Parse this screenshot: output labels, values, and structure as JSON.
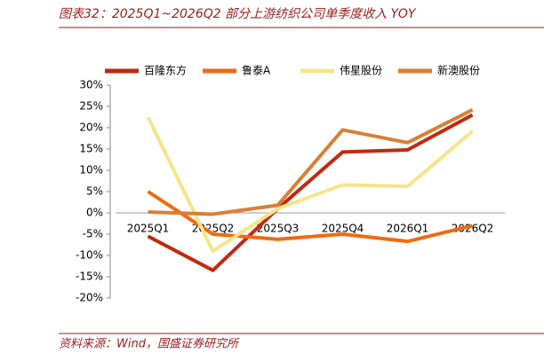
{
  "chart_data": {
    "type": "line",
    "title": "图表32：2025Q1~2026Q2 部分上游纺织公司单季度收入 YOY",
    "source": "资料来源：Wind，国盛证券研究所",
    "categories": [
      "2025Q1",
      "2025Q2",
      "2025Q3",
      "2025Q4",
      "2026Q1",
      "2026Q2"
    ],
    "series": [
      {
        "name": "百隆东方",
        "color": "#c0290f",
        "values": [
          -5.5,
          -13.5,
          1,
          14.3,
          14.8,
          23
        ]
      },
      {
        "name": "鲁泰A",
        "color": "#f06a10",
        "values": [
          5,
          -5,
          -6.2,
          -5,
          -6.7,
          -3
        ]
      },
      {
        "name": "伟星股份",
        "color": "#f5e58a",
        "values": [
          22.5,
          -9,
          1,
          6.6,
          6.2,
          19.2
        ]
      },
      {
        "name": "新澳股份",
        "color": "#d97f35",
        "values": [
          0.2,
          -0.3,
          1.8,
          19.5,
          16.5,
          24.2
        ]
      }
    ],
    "ylim": [
      -20,
      30
    ],
    "yticks": [
      {
        "value": -20,
        "label": "-20%"
      },
      {
        "value": -15,
        "label": "-15%"
      },
      {
        "value": -10,
        "label": "-10%"
      },
      {
        "value": -5,
        "label": "-5%"
      },
      {
        "value": 0,
        "label": "0%"
      },
      {
        "value": 5,
        "label": "5%"
      },
      {
        "value": 10,
        "label": "10%"
      },
      {
        "value": 15,
        "label": "15%"
      },
      {
        "value": 20,
        "label": "20%"
      },
      {
        "value": 25,
        "label": "25%"
      },
      {
        "value": 30,
        "label": "30%"
      }
    ],
    "grid": false,
    "legend": "top"
  }
}
